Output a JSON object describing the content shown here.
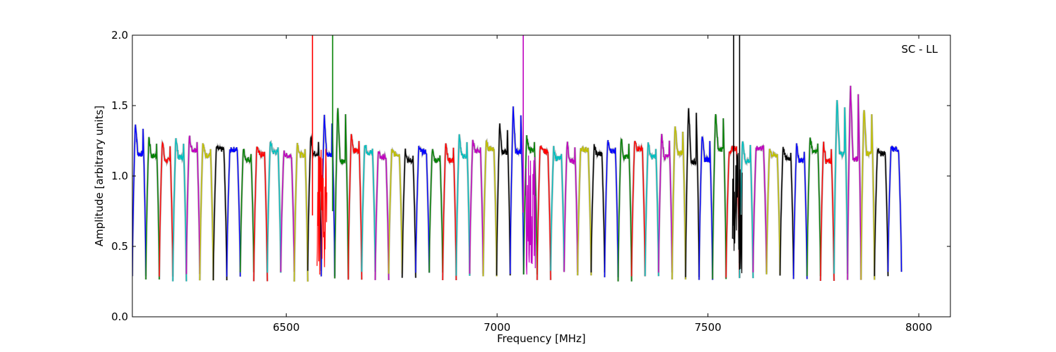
{
  "chart_data": {
    "type": "line",
    "annotation": "SC - LL",
    "xlabel": "Frequency [MHz]",
    "ylabel": "Amplitude [arbitrary units]",
    "xlim": [
      6135,
      8075
    ],
    "ylim": [
      0.0,
      2.0
    ],
    "x_ticks": [
      6500,
      7000,
      7500,
      8000
    ],
    "x_tick_labels": [
      "6500",
      "7000",
      "7500",
      "8000"
    ],
    "y_ticks": [
      0.0,
      0.5,
      1.0,
      1.5,
      2.0
    ],
    "y_tick_labels": [
      "0.0",
      "0.5",
      "1.0",
      "1.5",
      "2.0"
    ],
    "grid": false,
    "legend": "none",
    "series_colors": [
      "#0000ff",
      "#008000",
      "#ff0000",
      "#00bfbf",
      "#bf00bf",
      "#bfbf00",
      "#000000"
    ],
    "shadow_color": "#bbbbbb",
    "channel_start": 6135,
    "channel_width": 32,
    "channel_peaks": [
      1.39,
      1.28,
      1.26,
      1.28,
      1.29,
      1.24,
      1.2,
      1.18,
      1.2,
      1.22,
      1.25,
      1.17,
      1.24,
      1.29,
      1.43,
      1.5,
      1.3,
      1.24,
      1.17,
      1.18,
      1.19,
      1.2,
      1.19,
      1.25,
      1.29,
      1.25,
      1.24,
      1.38,
      1.49,
      1.29,
      1.22,
      1.2,
      1.25,
      1.2,
      1.21,
      1.25,
      1.28,
      1.25,
      1.24,
      1.3,
      1.37,
      1.51,
      1.3,
      1.47,
      1.16,
      1.27,
      1.19,
      1.2,
      1.21,
      1.22,
      1.28,
      1.24,
      1.55,
      1.65,
      1.5,
      1.2,
      1.2
    ],
    "spikes": [
      {
        "x": 6562,
        "color": "#ff0000",
        "y_top": 2.0,
        "y_bottom": 0.72
      },
      {
        "x": 6610,
        "color": "#008000",
        "y_top": 2.0,
        "y_bottom": 0.75
      },
      {
        "x": 7062,
        "color": "#bf00bf",
        "y_top": 2.0,
        "y_bottom": 0.74
      },
      {
        "x": 7561,
        "color": "#000000",
        "y_top": 2.0,
        "y_bottom": 0.55
      },
      {
        "x": 7575,
        "color": "#000000",
        "y_top": 2.0,
        "y_bottom": 0.38
      }
    ],
    "dropouts": [
      {
        "x": 6585,
        "color": "#ff0000"
      },
      {
        "x": 7080,
        "color": "#bf00bf"
      },
      {
        "x": 7570,
        "color": "#000000"
      }
    ]
  }
}
